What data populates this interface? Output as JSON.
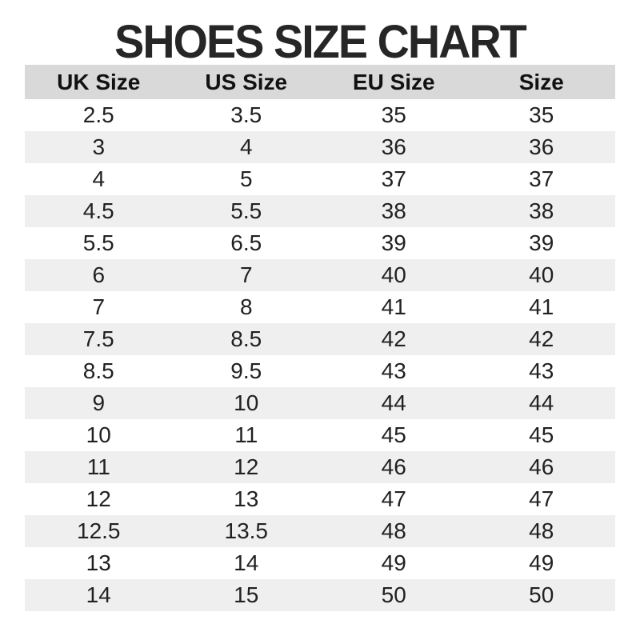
{
  "page": {
    "title": "SHOES SIZE CHART"
  },
  "chart_data": {
    "type": "table",
    "title": "SHOES SIZE CHART",
    "columns": [
      "UK Size",
      "US Size",
      "EU Size",
      "Size"
    ],
    "rows": [
      [
        "2.5",
        "3.5",
        "35",
        "35"
      ],
      [
        "3",
        "4",
        "36",
        "36"
      ],
      [
        "4",
        "5",
        "37",
        "37"
      ],
      [
        "4.5",
        "5.5",
        "38",
        "38"
      ],
      [
        "5.5",
        "6.5",
        "39",
        "39"
      ],
      [
        "6",
        "7",
        "40",
        "40"
      ],
      [
        "7",
        "8",
        "41",
        "41"
      ],
      [
        "7.5",
        "8.5",
        "42",
        "42"
      ],
      [
        "8.5",
        "9.5",
        "43",
        "43"
      ],
      [
        "9",
        "10",
        "44",
        "44"
      ],
      [
        "10",
        "11",
        "45",
        "45"
      ],
      [
        "11",
        "12",
        "46",
        "46"
      ],
      [
        "12",
        "13",
        "47",
        "47"
      ],
      [
        "12.5",
        "13.5",
        "48",
        "48"
      ],
      [
        "13",
        "14",
        "49",
        "49"
      ],
      [
        "14",
        "15",
        "50",
        "50"
      ]
    ],
    "layout": {
      "header_background": "#d9d9d9",
      "alternating_row_background": "#efefef",
      "page_background": "#ffffff",
      "zebra_striping": "even data rows shaded, starting from second row"
    }
  },
  "colors": {
    "header_bg": "#d9d9d9",
    "alt_row_bg": "#efefef",
    "title_color": "#262626",
    "text_color": "#212121",
    "header_text": "#111111"
  }
}
